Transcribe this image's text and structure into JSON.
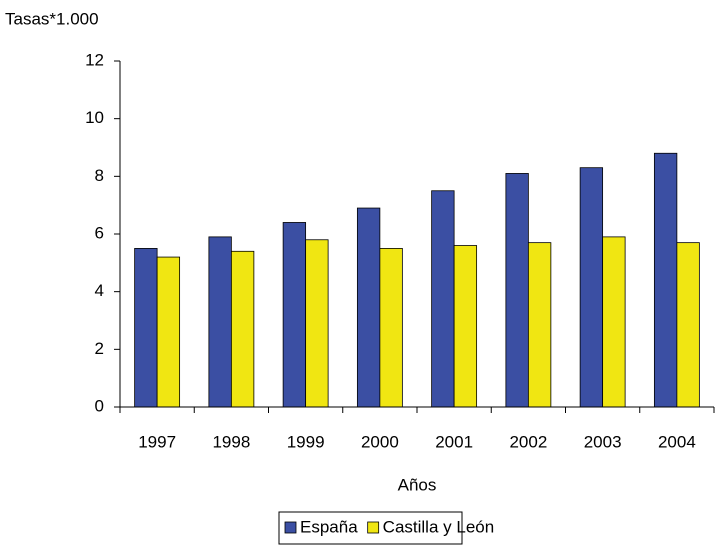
{
  "chart_data": {
    "type": "bar",
    "y_label": "Tasas*1.000",
    "x_label": "Años",
    "categories": [
      "1997",
      "1998",
      "1999",
      "2000",
      "2001",
      "2002",
      "2003",
      "2004"
    ],
    "series": [
      {
        "name": "España",
        "color": "#3b4fa3",
        "values": [
          5.5,
          5.9,
          6.4,
          6.9,
          7.5,
          8.1,
          8.3,
          8.8
        ]
      },
      {
        "name": "Castilla y León",
        "color": "#f0e612",
        "values": [
          5.2,
          5.4,
          5.8,
          5.5,
          5.6,
          5.7,
          5.9,
          5.7
        ]
      }
    ],
    "ylim": [
      0,
      12
    ],
    "yticks": [
      0,
      2,
      4,
      6,
      8,
      10,
      12
    ],
    "grid": false,
    "legend": "bottom"
  }
}
